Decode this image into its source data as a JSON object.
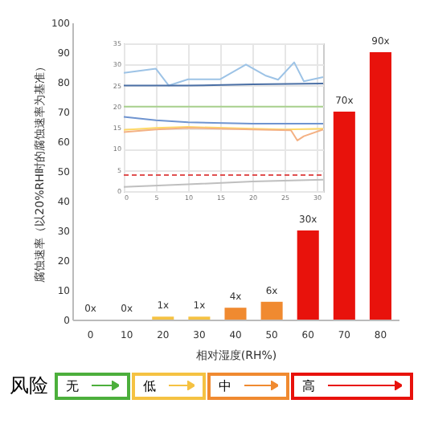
{
  "chart_data": [
    {
      "type": "bar",
      "xlabel": "相对湿度(RH%)",
      "ylabel": "腐蚀速率（以20%RH时的腐蚀速率为基准）",
      "categories": [
        "0",
        "10",
        "20",
        "30",
        "40",
        "50",
        "60",
        "70",
        "80"
      ],
      "values": [
        0,
        0,
        1,
        1,
        4,
        6,
        30,
        70,
        90
      ],
      "value_labels": [
        "0x",
        "0x",
        "1x",
        "1x",
        "4x",
        "6x",
        "30x",
        "70x",
        "90x"
      ],
      "colors": [
        "#f5c242",
        "#f5c242",
        "#f5c242",
        "#f5c242",
        "#f08a30",
        "#f08a30",
        "#e8120c",
        "#e8120c",
        "#e8120c"
      ],
      "ylim": [
        0,
        100
      ],
      "yticks": [
        0,
        10,
        20,
        30,
        40,
        50,
        60,
        70,
        80,
        90,
        100
      ],
      "grid": false,
      "annotations": [
        "风险",
        "无",
        "低",
        "中",
        "高"
      ]
    },
    {
      "type": "line",
      "xlim": [
        0,
        31
      ],
      "xticks": [
        0,
        5,
        10,
        15,
        20,
        25,
        30
      ],
      "ylim": [
        0,
        35
      ],
      "yticks": [
        0,
        5,
        10,
        15,
        20,
        25,
        30,
        35
      ],
      "grid": true,
      "series": [
        {
          "color": "#9dc3e6",
          "x": [
            0,
            5,
            6,
            7,
            10,
            15,
            19,
            22,
            24,
            26.5,
            28,
            31
          ],
          "values": [
            28,
            29,
            27,
            25,
            26.5,
            26.5,
            30,
            27.4,
            26.4,
            30.5,
            26,
            27
          ]
        },
        {
          "color": "#4a6fa5",
          "x": [
            0,
            10,
            20,
            31
          ],
          "values": [
            25,
            25,
            25.3,
            25.5
          ]
        },
        {
          "color": "#a9d18e",
          "x": [
            0,
            31
          ],
          "values": [
            20,
            20
          ]
        },
        {
          "color": "#6f94d0",
          "x": [
            0,
            5,
            10,
            20,
            31
          ],
          "values": [
            17.6,
            16.8,
            16.3,
            16,
            16
          ]
        },
        {
          "color": "#ffd966",
          "x": [
            0,
            5,
            10,
            20,
            25,
            31
          ],
          "values": [
            14.5,
            15,
            15.2,
            14.8,
            14.6,
            14.8
          ]
        },
        {
          "color": "#f4b183",
          "x": [
            0,
            5,
            10,
            20,
            26,
            27,
            28,
            31
          ],
          "values": [
            14,
            14.6,
            15,
            14.6,
            14.4,
            12,
            13,
            14.6
          ]
        },
        {
          "color": "#e05050",
          "x": [
            0,
            31
          ],
          "values": [
            3.8,
            3.8
          ],
          "line_style": "dashed"
        },
        {
          "color": "#bfbfbf",
          "x": [
            0,
            10,
            20,
            31
          ],
          "values": [
            1,
            1.6,
            2.3,
            2.7
          ]
        }
      ]
    }
  ]
}
